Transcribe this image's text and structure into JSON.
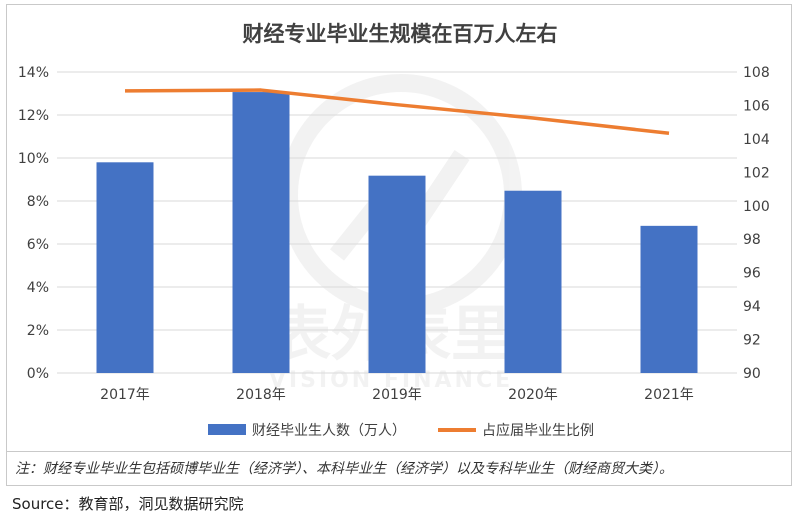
{
  "note": "注：财经专业毕业生包括硕博毕业生（经济学）、本科毕业生（经济学）以及专科毕业生（财经商贸大类）。",
  "source": "Source：教育部，洞见数据研究院",
  "watermark": {
    "main": "表外表里",
    "sub": "VISION FINANCE"
  },
  "colors": {
    "bar": "#4472c4",
    "line": "#ed7d31",
    "grid": "#d9d9d9",
    "axis_text": "#404040"
  },
  "chart_data": {
    "type": "bar",
    "title": "财经专业毕业生规模在百万人左右",
    "categories": [
      "2017年",
      "2018年",
      "2019年",
      "2020年",
      "2021年"
    ],
    "series": [
      {
        "name": "财经毕业生人数（万人）",
        "type": "bar",
        "axis": "right",
        "values": [
          102.6,
          106.8,
          101.8,
          100.9,
          98.8
        ]
      },
      {
        "name": "占应届毕业生比例",
        "type": "line",
        "axis": "left",
        "values": [
          0.1312,
          0.1316,
          0.1248,
          0.1186,
          0.1115
        ]
      }
    ],
    "y_left": {
      "min": 0,
      "max": 0.14,
      "step": 0.02,
      "tick_labels": [
        "0%",
        "2%",
        "4%",
        "6%",
        "8%",
        "10%",
        "12%",
        "14%"
      ]
    },
    "y_right": {
      "min": 90,
      "max": 108,
      "step": 2,
      "tick_labels": [
        "90",
        "92",
        "94",
        "96",
        "98",
        "100",
        "102",
        "104",
        "106",
        "108"
      ]
    },
    "grid": true,
    "legend_position": "bottom"
  }
}
